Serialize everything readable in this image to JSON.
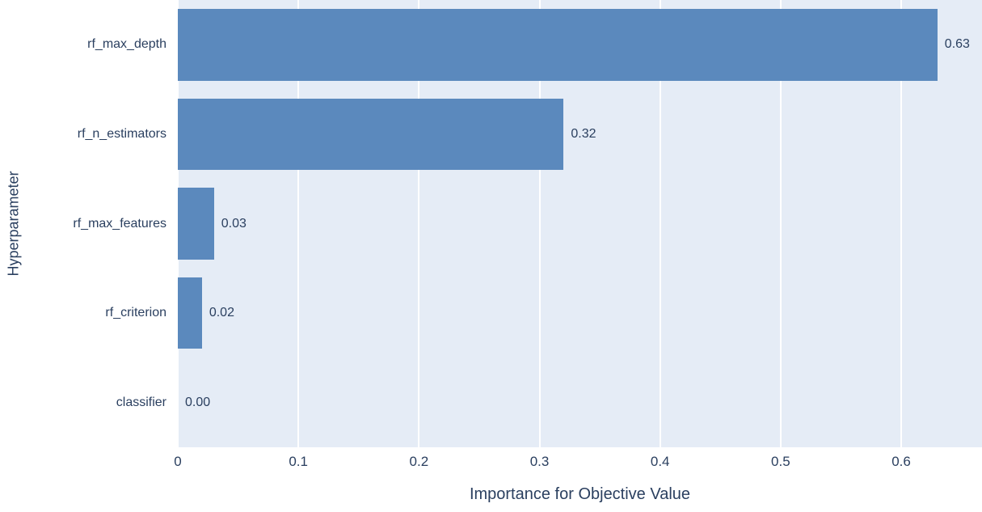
{
  "chart_data": {
    "type": "bar",
    "orientation": "horizontal",
    "title": "",
    "xlabel": "Importance for Objective Value",
    "ylabel": "Hyperparameter",
    "categories": [
      "rf_max_depth",
      "rf_n_estimators",
      "rf_max_features",
      "rf_criterion",
      "classifier"
    ],
    "values": [
      0.63,
      0.32,
      0.03,
      0.02,
      0.0
    ],
    "value_labels": [
      "0.63",
      "0.32",
      "0.03",
      "0.02",
      "0.00"
    ],
    "xlim": [
      0,
      0.667
    ],
    "xticks": [
      0,
      0.1,
      0.2,
      0.3,
      0.4,
      0.5,
      0.6
    ],
    "xtick_labels": [
      "0",
      "0.1",
      "0.2",
      "0.3",
      "0.4",
      "0.5",
      "0.6"
    ],
    "grid": true,
    "legend": "none",
    "colors": {
      "bar": "#5b89bd",
      "plot_bg": "#e5ecf6",
      "grid": "#ffffff",
      "text": "#2a3f5f",
      "page_bg": "#ffffff"
    }
  }
}
